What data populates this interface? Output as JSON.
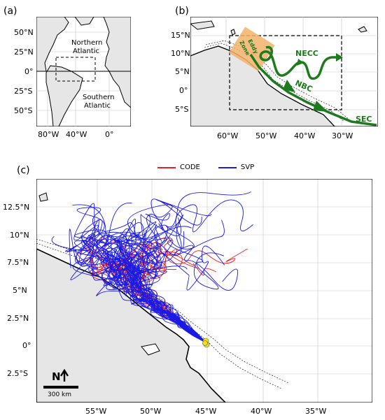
{
  "panel_a": {
    "label": "(a)",
    "lat_ticks": [
      "50°N",
      "25°N",
      "0°",
      "25°S",
      "50°S"
    ],
    "lon_ticks": [
      "80°W",
      "40°W",
      "0°"
    ],
    "region_labels": {
      "north": "Northern Atlantic",
      "north_l1": "Northern",
      "north_l2": "Atlantic",
      "south_l1": "Southern",
      "south_l2": "Atlantic"
    }
  },
  "panel_b": {
    "label": "(b)",
    "lat_ticks": [
      "15°N",
      "10°N",
      "5°N",
      "0°",
      "5°S"
    ],
    "lon_ticks": [
      "60°W",
      "50°W",
      "40°W",
      "30°W"
    ],
    "currents": {
      "necc": "NECC",
      "nbc": "NBC",
      "sec": "SEC"
    },
    "eddy_zone_l1": "Eddy",
    "eddy_zone_l2": "Zone",
    "current_color": "#1e7a1e",
    "eddy_zone_color": "#f3b36b"
  },
  "panel_c": {
    "label": "(c)",
    "legend": [
      {
        "name": "CODE",
        "color": "#e8201e"
      },
      {
        "name": "SVP",
        "color": "#1a1ae6"
      }
    ],
    "lat_ticks": [
      "12.5°N",
      "10°N",
      "7.5°N",
      "5°N",
      "2.5°N",
      "0°",
      "2.5°S"
    ],
    "lon_ticks": [
      "55°W",
      "50°W",
      "45°W",
      "40°W",
      "35°W"
    ],
    "north_arrow": "N",
    "scale_bar": "300 km",
    "deployment_marker_color": "#f2e21b"
  },
  "colors": {
    "land": "#e6e6e6",
    "ocean": "#ffffff",
    "grid": "#c8c8c8"
  }
}
